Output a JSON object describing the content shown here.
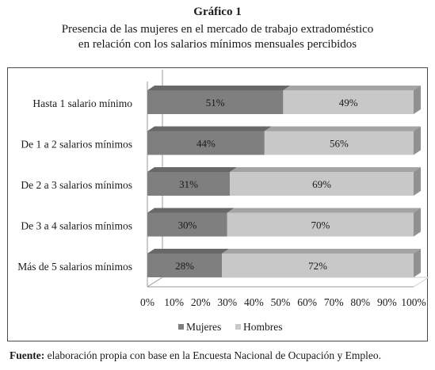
{
  "header": {
    "label": "Gráfico 1",
    "title_line1": "Presencia de las mujeres en el mercado de trabajo extradoméstico",
    "title_line2": "en relación con los salarios mínimos mensuales percibidos"
  },
  "chart_data": {
    "type": "bar",
    "orientation": "horizontal",
    "stacked": "percent",
    "categories": [
      "Hasta 1 salario mínimo",
      "De 1 a 2 salarios mínimos",
      "De 2 a 3 salarios mínimos",
      "De 3 a 4 salarios mínimos",
      "Más de 5 salarios mínimos"
    ],
    "series": [
      {
        "name": "Mujeres",
        "values": [
          51,
          44,
          31,
          30,
          28
        ],
        "labels": [
          "51%",
          "44%",
          "31%",
          "30%",
          "28%"
        ],
        "color": "#7f7f7f"
      },
      {
        "name": "Hombres",
        "values": [
          49,
          56,
          69,
          70,
          72
        ],
        "labels": [
          "49%",
          "56%",
          "69%",
          "70%",
          "72%"
        ],
        "color": "#c8c8c8"
      }
    ],
    "x_ticks": [
      "0%",
      "10%",
      "20%",
      "30%",
      "40%",
      "50%",
      "60%",
      "70%",
      "80%",
      "90%",
      "100%"
    ],
    "xlim": [
      0,
      100
    ],
    "legend_position": "bottom",
    "grid": false,
    "style": "3d"
  },
  "footer": {
    "source_label": "Fuente:",
    "source_text": " elaboración propia con base en la Encuesta Nacional de Ocupación y Empleo."
  }
}
